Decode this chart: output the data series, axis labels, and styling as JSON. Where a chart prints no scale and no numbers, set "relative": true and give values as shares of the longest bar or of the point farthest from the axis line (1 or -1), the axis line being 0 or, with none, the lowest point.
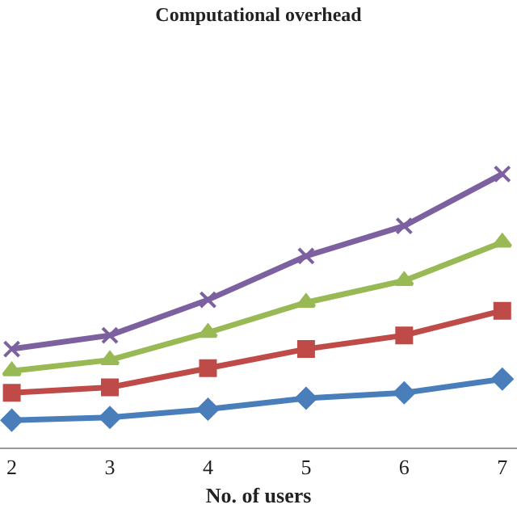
{
  "chart_data": {
    "type": "line",
    "title": "Computational overhead",
    "xlabel": "No. of users",
    "categories": [
      "2",
      "3",
      "4",
      "5",
      "6",
      "7"
    ],
    "relative": true,
    "series": [
      {
        "color": "#4a7ebb",
        "marker": "diamond",
        "values": [
          0.1,
          0.11,
          0.14,
          0.18,
          0.2,
          0.25
        ]
      },
      {
        "color": "#be4b48",
        "marker": "square",
        "values": [
          0.2,
          0.22,
          0.29,
          0.36,
          0.41,
          0.5
        ]
      },
      {
        "color": "#98b954",
        "marker": "triangle",
        "values": [
          0.28,
          0.32,
          0.42,
          0.53,
          0.61,
          0.75
        ]
      },
      {
        "color": "#7d60a0",
        "marker": "cross",
        "values": [
          0.36,
          0.41,
          0.54,
          0.7,
          0.81,
          1.0
        ]
      }
    ]
  }
}
